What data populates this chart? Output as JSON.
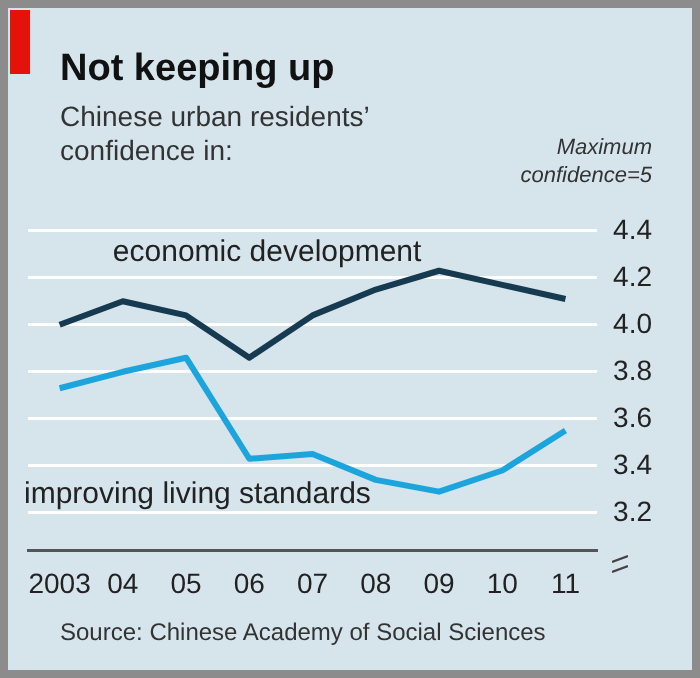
{
  "chart_data": {
    "type": "line",
    "title": "Not keeping up",
    "subtitle": "Chinese urban residents’ confidence in:",
    "categories": [
      "2003",
      "04",
      "05",
      "06",
      "07",
      "08",
      "09",
      "10",
      "11"
    ],
    "series": [
      {
        "name": "economic development",
        "color": "#163a4f",
        "values": [
          4.0,
          4.1,
          4.04,
          3.86,
          4.04,
          4.15,
          4.23,
          4.17,
          4.11
        ]
      },
      {
        "name": "improving living standards",
        "color": "#1ca4dc",
        "values": [
          3.73,
          3.8,
          3.86,
          3.43,
          3.45,
          3.34,
          3.29,
          3.38,
          3.55
        ]
      }
    ],
    "ylim": [
      3.04,
      4.4
    ],
    "yticks": [
      {
        "value": 3.2,
        "label": "3.2"
      },
      {
        "value": 3.4,
        "label": "3.4"
      },
      {
        "value": 3.6,
        "label": "3.6"
      },
      {
        "value": 3.8,
        "label": "3.8"
      },
      {
        "value": 4.0,
        "label": "4.0"
      },
      {
        "value": 4.2,
        "label": "4.2"
      },
      {
        "value": 4.4,
        "label": "4.4"
      }
    ],
    "grid": "y",
    "legend": false,
    "marker": "none",
    "line_style": "solid",
    "annotations": [
      "Maximum confidence=5",
      "Source: Chinese Academy of Social Sciences"
    ]
  }
}
